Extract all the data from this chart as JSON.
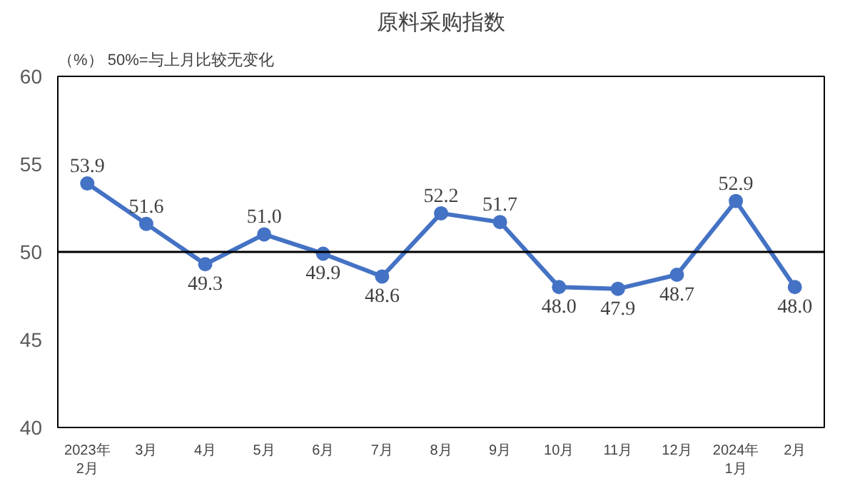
{
  "chart_data": {
    "type": "line",
    "title": "原料采购指数",
    "annotations": [
      "（%）  50%=与上月比较无变化"
    ],
    "categories": [
      "2023年\n2月",
      "3月",
      "4月",
      "5月",
      "6月",
      "7月",
      "8月",
      "9月",
      "10月",
      "11月",
      "12月",
      "2024年\n1月",
      "2月"
    ],
    "series": [
      {
        "color": "#4472c4",
        "values": [
          53.9,
          51.6,
          49.3,
          51.0,
          49.9,
          48.6,
          52.2,
          51.7,
          48.0,
          47.9,
          48.7,
          52.9,
          48.0
        ],
        "value_labels": [
          "53.9",
          "51.6",
          "49.3",
          "51.0",
          "49.9",
          "48.6",
          "52.2",
          "51.7",
          "48.0",
          "47.9",
          "48.7",
          "52.9",
          "48.0"
        ]
      }
    ],
    "ylim": [
      40,
      60
    ],
    "yticks": [
      40,
      45,
      50,
      55,
      60
    ],
    "ref_lines": [
      {
        "axis": "y",
        "value": 50,
        "color": "#000000"
      }
    ],
    "grid": false,
    "marker": "circle",
    "line_style": "solid"
  }
}
